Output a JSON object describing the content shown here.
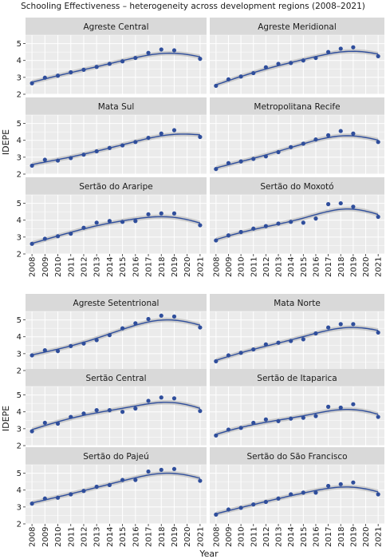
{
  "title": "Schooling Effectiveness – heterogeneity across development regions (2008–2021)",
  "ylabel": "IDEPE",
  "xlabel": "Year",
  "colors": {
    "panel_bg": "#ebebeb",
    "strip_bg": "#d9d9d9",
    "grid": "#ffffff",
    "ribbon": "#bfbfbf",
    "line": "#2f4e9c",
    "point": "#2f4e9c"
  },
  "chart_data": [
    {
      "type": "scatter",
      "subtitle": "",
      "xlabel": "",
      "ylabel": "IDEPE",
      "x": [
        2008,
        2009,
        2010,
        2011,
        2012,
        2013,
        2014,
        2015,
        2016,
        2017,
        2018,
        2019,
        2021
      ],
      "x_ticks": [
        "2008",
        "2009",
        "2010",
        "2011",
        "2012",
        "2013",
        "2014",
        "2015",
        "2016",
        "2017",
        "2018",
        "2019",
        "2020",
        "2021"
      ],
      "y_ticks": [
        2,
        3,
        4,
        5
      ],
      "ylim": [
        2,
        5.5
      ],
      "xlim": [
        2007.5,
        2021.5
      ],
      "facets": [
        {
          "name": "Agreste Central",
          "values": [
            2.65,
            2.98,
            3.1,
            3.3,
            3.45,
            3.62,
            3.8,
            3.95,
            4.15,
            4.45,
            4.65,
            4.6,
            4.1
          ]
        },
        {
          "name": "Agreste Meridional",
          "values": [
            2.5,
            2.88,
            3.05,
            3.25,
            3.6,
            3.8,
            3.85,
            4.0,
            4.15,
            4.5,
            4.7,
            4.78,
            4.25
          ]
        },
        {
          "name": "Mata Sul",
          "values": [
            2.5,
            2.85,
            2.8,
            2.95,
            3.15,
            3.35,
            3.55,
            3.7,
            3.9,
            4.15,
            4.4,
            4.6,
            4.2
          ]
        },
        {
          "name": "Metropolitana Recife",
          "values": [
            2.3,
            2.65,
            2.75,
            2.9,
            3.05,
            3.3,
            3.6,
            3.8,
            4.05,
            4.3,
            4.55,
            4.4,
            3.9
          ]
        },
        {
          "name": "Sertão do Araripe",
          "values": [
            2.6,
            2.9,
            3.05,
            3.2,
            3.55,
            3.85,
            3.95,
            3.9,
            3.95,
            4.35,
            4.4,
            4.4,
            3.7
          ]
        },
        {
          "name": "Sertão do Moxotó",
          "values": [
            2.8,
            3.1,
            3.3,
            3.5,
            3.65,
            3.8,
            3.9,
            3.85,
            4.1,
            4.95,
            5.0,
            4.8,
            4.2
          ]
        }
      ]
    },
    {
      "type": "scatter",
      "subtitle": "",
      "xlabel": "Year",
      "ylabel": "IDEPE",
      "x": [
        2008,
        2009,
        2010,
        2011,
        2012,
        2013,
        2014,
        2015,
        2016,
        2017,
        2018,
        2019,
        2021
      ],
      "x_ticks": [
        "2008",
        "2009",
        "2010",
        "2011",
        "2012",
        "2013",
        "2014",
        "2015",
        "2016",
        "2017",
        "2018",
        "2019",
        "2020",
        "2021"
      ],
      "y_ticks": [
        2,
        3,
        4,
        5
      ],
      "ylim": [
        2,
        5.5
      ],
      "xlim": [
        2007.5,
        2021.5
      ],
      "facets": [
        {
          "name": "Agreste Setentrional",
          "values": [
            2.9,
            3.2,
            3.15,
            3.45,
            3.6,
            3.8,
            4.1,
            4.5,
            4.8,
            5.05,
            5.25,
            5.2,
            4.55
          ]
        },
        {
          "name": "Mata Norte",
          "values": [
            2.55,
            2.9,
            3.05,
            3.25,
            3.55,
            3.65,
            3.75,
            3.85,
            4.2,
            4.55,
            4.75,
            4.75,
            4.25
          ]
        },
        {
          "name": "Sertão Central",
          "values": [
            2.85,
            3.35,
            3.3,
            3.7,
            3.9,
            4.1,
            4.1,
            4.0,
            4.2,
            4.65,
            4.85,
            4.8,
            4.05
          ]
        },
        {
          "name": "Sertão de Itaparica",
          "values": [
            2.6,
            2.95,
            3.05,
            3.35,
            3.55,
            3.45,
            3.6,
            3.65,
            3.75,
            4.3,
            4.25,
            4.45,
            3.7
          ]
        },
        {
          "name": "Sertão do Pajeú",
          "values": [
            3.2,
            3.5,
            3.55,
            3.75,
            3.95,
            4.2,
            4.3,
            4.6,
            4.6,
            5.1,
            5.2,
            5.25,
            4.55
          ]
        },
        {
          "name": "Sertão do São Francisco",
          "values": [
            2.55,
            2.85,
            2.95,
            3.15,
            3.3,
            3.5,
            3.75,
            3.85,
            3.85,
            4.25,
            4.35,
            4.45,
            3.75
          ]
        }
      ]
    }
  ]
}
